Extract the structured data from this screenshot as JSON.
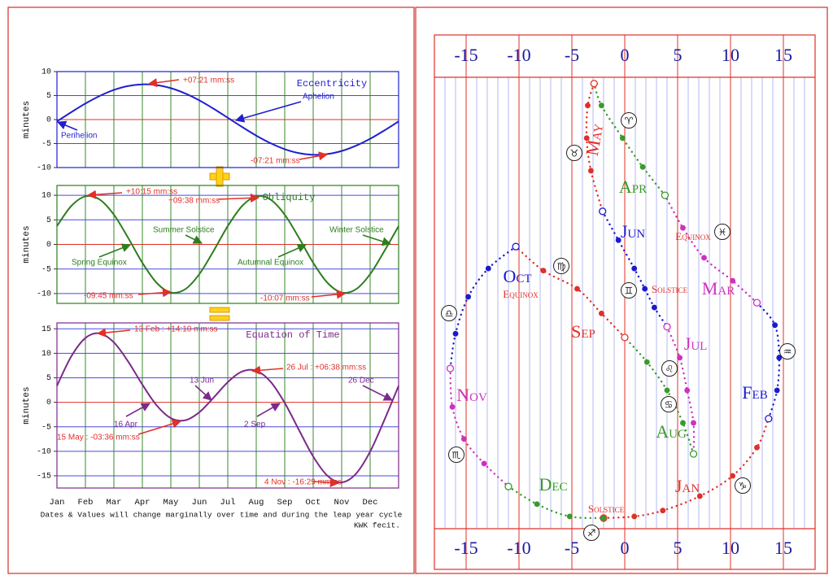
{
  "chart_data": [
    {
      "type": "line",
      "title": "Eccentricity",
      "ylabel": "minutes",
      "color": "#1f1fd0",
      "values": [
        -0.38,
        1.53,
        3.34,
        4.92,
        6.17,
        6.99,
        7.34,
        7.19,
        6.55,
        5.46,
        4.01,
        2.27,
        0.38,
        -1.53,
        -3.34,
        -4.92,
        -6.17,
        -6.99,
        -7.34,
        -7.19,
        -6.55,
        -5.46,
        -4.01,
        -2.27,
        -0.38
      ],
      "ylim": [
        -10,
        10
      ],
      "yticks": [
        -10,
        -5,
        0,
        5,
        10
      ],
      "grid": true,
      "annotations": [
        "+07:21 mm:ss",
        "-07:21 mm:ss",
        "Aphelion",
        "Perihelion"
      ]
    },
    {
      "type": "line",
      "title": "Obliquity",
      "ylabel": "minutes",
      "color": "#2e7d1e",
      "values": [
        3.73,
        7.8,
        9.78,
        9.14,
        6.05,
        1.34,
        -3.73,
        -7.8,
        -9.78,
        -9.14,
        -6.05,
        -1.34,
        3.73,
        7.8,
        9.78,
        9.14,
        6.05,
        1.34,
        -3.73,
        -7.8,
        -9.78,
        -9.14,
        -6.05,
        -1.34,
        3.73
      ],
      "ylim": [
        -12,
        12
      ],
      "yticks": [
        -10,
        -5,
        0,
        5,
        10
      ],
      "grid": true,
      "annotations": [
        "+10:15 mm:ss",
        "+09:38 mm:ss",
        "-09:45 mm:ss",
        "-10:07 mm:ss",
        "Summer Solstice",
        "Spring Equinox",
        "Autumnal Equinox",
        "Winter Solstice"
      ]
    },
    {
      "type": "line",
      "title": "Equation of Time",
      "ylabel": "minutes",
      "color": "#7b2a8a",
      "categories": [
        "Jan",
        null,
        "Feb",
        null,
        "Mar",
        null,
        "Apr",
        null,
        "May",
        null,
        "Jun",
        null,
        "Jul",
        null,
        "Aug",
        null,
        "Sep",
        null,
        "Oct",
        null,
        "Nov",
        null,
        "Dec",
        null,
        null
      ],
      "values": [
        3.35,
        9.33,
        13.12,
        14.06,
        12.22,
        8.33,
        3.61,
        -0.61,
        -3.23,
        -3.68,
        -2.04,
        0.93,
        4.11,
        6.27,
        6.44,
        4.22,
        -0.12,
        -5.65,
        -11.07,
        -14.99,
        -16.33,
        -14.6,
        -10.06,
        -3.61,
        3.35
      ],
      "ylim": [
        -17.5,
        16.2
      ],
      "yticks": [
        -15,
        -10,
        -5,
        0,
        5,
        10,
        15
      ],
      "grid": true,
      "annotations": [
        "13 Feb : +14:10 mm:ss",
        "26 Jul : +06:38 mm:ss",
        "13 Jun",
        "26 Dec",
        "16 Apr",
        "2 Sep",
        "15 May : -03:36 mm:ss",
        "4 Nov : -16:29 mm:ss"
      ]
    },
    {
      "type": "line",
      "xlim": [
        -18,
        18
      ],
      "xticks": [
        -15,
        -10,
        -5,
        0,
        5,
        10,
        15
      ],
      "minor_xticks": [
        -17,
        -16,
        -14,
        -13,
        -12,
        -11,
        -9,
        -8,
        -7,
        -6,
        -4,
        -3,
        -2,
        -1,
        1,
        2,
        3,
        4,
        6,
        7,
        8,
        9,
        11,
        12,
        13,
        14,
        16,
        17
      ],
      "ylim": [
        0,
        100
      ],
      "series": [
        {
          "name": "Jan",
          "color": "#e0302a",
          "x": [
            -2.0,
            0.9,
            3.6,
            7.1,
            10.2,
            12.5,
            13.6
          ],
          "values": [
            9.6,
            9.9,
            11.0,
            13.7,
            17.5,
            22.8,
            28.2
          ]
        },
        {
          "name": "Feb",
          "color": "#1a1ad0",
          "x": [
            13.6,
            14.4,
            14.6,
            14.2,
            12.5
          ],
          "values": [
            28.2,
            33.5,
            39.6,
            45.7,
            49.9
          ]
        },
        {
          "name": "Mar",
          "color": "#d030c0",
          "x": [
            12.5,
            10.2,
            7.5,
            5.5,
            3.8
          ],
          "values": [
            49.9,
            54.0,
            58.3,
            63.9,
            70.0
          ]
        },
        {
          "name": "Apr",
          "color": "#3a9a2a",
          "x": [
            3.8,
            1.7,
            -0.2,
            -2.2,
            -2.9
          ],
          "values": [
            70.0,
            75.3,
            80.7,
            86.8,
            90.9
          ]
        },
        {
          "name": "May",
          "color": "#e0302a",
          "x": [
            -2.9,
            -3.5,
            -3.6,
            -3.2,
            -2.1
          ],
          "values": [
            90.9,
            86.8,
            80.7,
            74.6,
            67.0
          ]
        },
        {
          "name": "Jun",
          "color": "#1a1ad0",
          "x": [
            -2.1,
            -0.6,
            0.9,
            1.9,
            2.8,
            4.0
          ],
          "values": [
            67.0,
            61.6,
            56.3,
            52.5,
            49.0,
            45.4
          ]
        },
        {
          "name": "Jul",
          "color": "#d030c0",
          "x": [
            4.0,
            5.2,
            5.9,
            6.5,
            6.5
          ],
          "values": [
            45.4,
            39.6,
            33.5,
            27.4,
            21.6
          ]
        },
        {
          "name": "Aug",
          "color": "#3a9a2a",
          "x": [
            6.5,
            5.5,
            4.0,
            2.1,
            0
          ],
          "values": [
            21.6,
            27.4,
            33.5,
            38.8,
            43.4
          ]
        },
        {
          "name": "Sep",
          "color": "#e0302a",
          "x": [
            0,
            -2.2,
            -4.5,
            -7.7,
            -10.3
          ],
          "values": [
            43.4,
            47.9,
            52.5,
            55.9,
            60.4
          ]
        },
        {
          "name": "Oct",
          "color": "#1a1ad0",
          "x": [
            -10.3,
            -12.9,
            -14.8,
            -16.0,
            -16.5
          ],
          "values": [
            60.4,
            56.3,
            51.0,
            44.1,
            37.6
          ]
        },
        {
          "name": "Nov",
          "color": "#d030c0",
          "x": [
            -16.5,
            -16.3,
            -15.2,
            -13.3,
            -11.0
          ],
          "values": [
            37.6,
            30.4,
            24.4,
            19.8,
            15.5
          ]
        },
        {
          "name": "Dec",
          "color": "#3a9a2a",
          "x": [
            -11.0,
            -8.3,
            -5.2,
            -2.0
          ],
          "values": [
            15.5,
            12.2,
            9.9,
            9.6
          ]
        }
      ],
      "annotations": [
        "Equinox",
        "Equinox",
        "Solstice",
        "Solstice",
        "♈",
        "♉",
        "♊",
        "♋",
        "♌",
        "♍",
        "♎",
        "♏",
        "♐",
        "♑",
        "♒",
        "♓"
      ]
    }
  ],
  "footnote": "Dates & Values will change marginally over time and during the leap year cycle",
  "credit": "KWK fecit."
}
